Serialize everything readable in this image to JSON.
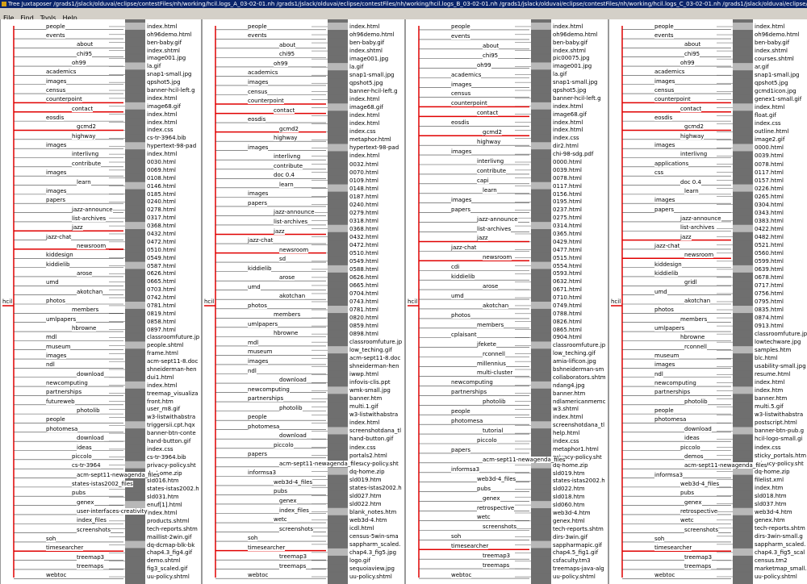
{
  "window": {
    "title": "Tree Juxtaposer /grads1/jslack/olduvai/eclipse/contestFiles/nh/working/hcil.logs_A_03-02-01.nh /grads1/jslack/olduvai/eclipse/contestFiles/nh/working/hcil.logs_B_03-02-01.nh /grads1/jslack/olduvai/eclipse/contestFiles/nh/working/hcil.logs_C_03-02-01.nh /grads1/jslack/olduvai/eclipse/contestFiles/nh/working/hcil.logs",
    "app_icon": "tree-juxtaposer-icon"
  },
  "menu": [
    "File",
    "Find",
    "Tools",
    "Help"
  ],
  "colors": {
    "highlight": "#e00000",
    "gray_dark": "#6f6f6f",
    "gray_light": "#b8b8b8"
  },
  "panes": [
    {
      "root": "hcil",
      "nodes": [
        "people",
        "events",
        "about",
        "chi95",
        "oh99",
        "academics",
        "images",
        "census",
        "counterpoint",
        "contact",
        "eosdis",
        "gcmd2",
        "highway",
        "images",
        "interlivng",
        "contribute",
        "images",
        "learn",
        "images",
        "papers",
        "jazz-announce",
        "list-archives",
        "jazz",
        "jazz-chat",
        "newsroom",
        "kiddesign",
        "kiddielib",
        "arose",
        "umd",
        "akotchan",
        "photos",
        "members",
        "umlpapers",
        "hbrowne",
        "mdl",
        "museum",
        "images",
        "ndl",
        "download",
        "newcomputing",
        "partnerships",
        "futureweb",
        "photolib",
        "people",
        "photomesa",
        "download",
        "ideas",
        "piccolo",
        "cs-tr-3964",
        "acm-sept11-newagenda_files",
        "states-istas2002_files",
        "pubs",
        "genex",
        "user-interfaces-creativity",
        "index_files",
        "screenshots",
        "soh",
        "timesearcher",
        "treemap3",
        "treemaps",
        "webtoc"
      ],
      "leaves": [
        "index.html",
        "oh96demo.html",
        "ben-baby.gif",
        "index.shtml",
        "image001.jpg",
        "la.gif",
        "snap1-small.jpg",
        "qpshot5.jpg",
        "banner-hcil-left.g",
        "index.html",
        "image68.gif",
        "index.html",
        "index.html",
        "index.css",
        "cs-tr-3964.bib",
        "hypertext-98-pad",
        "index.html",
        "0030.html",
        "0069.html",
        "0108.html",
        "0146.html",
        "0185.html",
        "0240.html",
        "0278.html",
        "0317.html",
        "0368.html",
        "0432.html",
        "0472.html",
        "0510.html",
        "0549.html",
        "0587.html",
        "0626.html",
        "0665.html",
        "0703.html",
        "0742.html",
        "0781.html",
        "0819.html",
        "0858.html",
        "0897.html",
        "classroomfuture.jp",
        "people.shtml",
        "frame.html",
        "acm-sept11-8.doc",
        "shneiderman-hen",
        "dui1.html",
        "index.html",
        "treemap_visualiza",
        "front.htm",
        "user_m8.gif",
        "w3-listwithabstra",
        "triggersii.cpt.hqx",
        "banner-btn-conte",
        "hand-button.gif",
        "index.css",
        "cs-tr-3964.bib",
        "privacy-policy.sht",
        "dq-home.zip",
        "sld016.htm",
        "states-istas2002.h",
        "sld031.htm",
        "enuf[1].html",
        "index.html",
        "products.shtml",
        "tech-reports.shtm",
        "maillist-2win.gif",
        "dq-dcmap-blk-bk",
        "chap4.3_fig4.gif",
        "demo.shtml",
        "fig3_scaled.gif",
        "uu-policy.shtml"
      ]
    },
    {
      "root": "hcil",
      "nodes": [
        "people",
        "events",
        "about",
        "chi95",
        "oh99",
        "academics",
        "images",
        "census",
        "counterpoint",
        "contact",
        "eosdis",
        "gcmd2",
        "highway",
        "images",
        "interlivng",
        "contribute",
        "doc 0.4",
        "learn",
        "images",
        "papers",
        "jazz-announce",
        "list-archives",
        "jazz",
        "jazz-chat",
        "newsroom",
        "sd",
        "kiddielib",
        "arose",
        "umd",
        "akotchan",
        "photos",
        "members",
        "umlpapers",
        "hbrowne",
        "mdl",
        "museum",
        "images",
        "ndl",
        "download",
        "newcomputing",
        "partnerships",
        "photolib",
        "people",
        "photomesa",
        "download",
        "piccolo",
        "papers",
        "acm-sept11-newagenda_files",
        "informsa3",
        "web3d-4_files",
        "pubs",
        "genex",
        "index_files",
        "wetc",
        "screenshots",
        "soh",
        "timesearcher",
        "treemap3",
        "treemaps",
        "webtoc"
      ],
      "leaves": [
        "index.html",
        "oh96demo.html",
        "ben-baby.gif",
        "index.shtml",
        "image001.jpg",
        "la.gif",
        "snap1-small.jpg",
        "qpshot5.jpg",
        "banner-hcil-left.g",
        "index.html",
        "image68.gif",
        "index.html",
        "index.html",
        "index.css",
        "metaphor.html",
        "hypertext-98-pad",
        "index.html",
        "0032.html",
        "0070.html",
        "0109.html",
        "0148.html",
        "0187.html",
        "0240.html",
        "0279.html",
        "0318.html",
        "0368.html",
        "0432.html",
        "0472.html",
        "0510.html",
        "0549.html",
        "0588.html",
        "0626.html",
        "0665.html",
        "0704.html",
        "0743.html",
        "0781.html",
        "0820.html",
        "0859.html",
        "0898.html",
        "classroomfuture.jp",
        "low_teching.gif",
        "acm-sept11-8.doc",
        "shneiderman-hen",
        "iwwp.html",
        "infovis-clis.ppt",
        "wmk-small.jpg",
        "banner.htm",
        "multi.1.gif",
        "w3-listwithabstra",
        "index.html",
        "screenshotdana_tl",
        "hand-button.gif",
        "index.css",
        "portals2.html",
        "privacy-policy.sht",
        "dq-home.zip",
        "sld019.htm",
        "states-istas2002.h",
        "sld027.htm",
        "sld022.htm",
        "blank_notes.htm",
        "web3d-4.htm",
        "icdl.html",
        "census-5win-sma",
        "sappharm_scaled.",
        "chap4.3_fig5.jpg",
        "logo.gif",
        "sequoiaview.jpg",
        "uu-policy.shtml"
      ]
    },
    {
      "root": "hcil",
      "nodes": [
        "people",
        "events",
        "about",
        "chi95",
        "oh99",
        "academics",
        "images",
        "census",
        "counterpoint",
        "contact",
        "eosdis",
        "gcmd2",
        "highway",
        "images",
        "interlivng",
        "contribute",
        "capi",
        "learn",
        "images",
        "papers",
        "jazz-announce",
        "list-archives",
        "jazz",
        "jazz-chat",
        "newsroom",
        "cdi",
        "kiddielib",
        "arose",
        "umd",
        "akotchan",
        "photos",
        "members",
        "cplaisant",
        "jfekete",
        "rconnell",
        "millennius",
        "multi-cluster",
        "newcomputing",
        "partnerships",
        "photolib",
        "people",
        "photomesa",
        "tutorial",
        "piccolo",
        "papers",
        "acm-sept11-newagenda_files",
        "informsa3",
        "web3d-4_files",
        "pubs",
        "genex",
        "retrospective",
        "wetc",
        "screenshots",
        "soh",
        "timesearcher",
        "treemap3",
        "treemaps",
        "webtoc"
      ],
      "leaves": [
        "index.html",
        "oh96demo.html",
        "ben-baby.gif",
        "index.shtml",
        "pic00075.jpg",
        "image001.jpg",
        "la.gif",
        "snap1-small.jpg",
        "qpshot5.jpg",
        "banner-hcil-left.g",
        "index.html",
        "image68.gif",
        "index.html",
        "index.html",
        "index.css",
        "dir2.html",
        "chi-98-sdg.pdf",
        "0000.html",
        "0039.html",
        "0078.html",
        "0117.html",
        "0156.html",
        "0195.html",
        "0237.html",
        "0275.html",
        "0314.html",
        "0365.html",
        "0429.html",
        "0477.html",
        "0515.html",
        "0554.html",
        "0593.html",
        "0632.html",
        "0671.html",
        "0710.html",
        "0749.html",
        "0788.html",
        "0826.html",
        "0865.html",
        "0904.html",
        "classroomfuture.jp",
        "low_teching.gif",
        "amia-lificon.jpg",
        "bshneiderman-sm",
        "collaborators.shtm",
        "ndang4.jpg",
        "banner.htm",
        "ndlamericanmemc",
        "w3.shtml",
        "index.html",
        "screenshotdana_tl",
        "help.html",
        "index.css",
        "metaphor1.html",
        "privacy-policy.sht",
        "dq-home.zip",
        "sld019.htm",
        "states-istas2002.h",
        "sld022.htm",
        "sld018.htm",
        "sld060.htm",
        "web3d-4.htm",
        "genex.html",
        "tech-reports.shtm",
        "dirs-3win.gif",
        "sappharmapic.gif",
        "chap4.5_fig1.gif",
        "csfaculty.tm3",
        "treemaps-java-alg",
        "uu-policy.shtml"
      ]
    },
    {
      "root": "hcil",
      "nodes": [
        "people",
        "events",
        "about",
        "chi95",
        "oh99",
        "academics",
        "images",
        "census",
        "counterpoint",
        "contact",
        "eosdis",
        "gcmd2",
        "highway",
        "images",
        "interlivng",
        "applications",
        "css",
        "doc 0.4",
        "learn",
        "images",
        "papers",
        "jazz-announce",
        "list-archives",
        "jazz",
        "jazz-chat",
        "newsroom",
        "kiddesign",
        "kiddielib",
        "gridl",
        "umd",
        "akotchan",
        "photos",
        "members",
        "umlpapers",
        "hbrowne",
        "rconnell",
        "museum",
        "images",
        "ndl",
        "newcomputing",
        "partnerships",
        "photolib",
        "people",
        "photomesa",
        "download",
        "ideas",
        "piccolo",
        "demos",
        "acm-sept11-newagenda_files",
        "informsa3",
        "web3d-4_files",
        "pubs",
        "genex",
        "retrospective",
        "wetc",
        "screenshots",
        "soh",
        "timesearcher",
        "treemap3",
        "treemaps",
        "webtoc"
      ],
      "leaves": [
        "index.html",
        "oh96demo.html",
        "ben-baby.gif",
        "index.shtml",
        "courses.shtml",
        "ar.gif",
        "snap1-small.jpg",
        "qpshot5.jpg",
        "gcmd1icon.jpg",
        "genex1-small.gif",
        "index.html",
        "float.gif",
        "index.css",
        "outline.html",
        "image2.gif",
        "0000.html",
        "0039.html",
        "0078.html",
        "0117.html",
        "0157.html",
        "0226.html",
        "0265.html",
        "0304.html",
        "0343.html",
        "0383.html",
        "0422.html",
        "0482.html",
        "0521.html",
        "0560.html",
        "0599.html",
        "0639.html",
        "0678.html",
        "0717.html",
        "0756.html",
        "0795.html",
        "0835.html",
        "0874.html",
        "0913.html",
        "classroomfuture.jp",
        "lowtechware.jpg",
        "samples.htm",
        "blc.html",
        "usability-small.jpg",
        "resume.html",
        "index.html",
        "index.htm",
        "banner.htm",
        "multi.5.gif",
        "w3-listwithabstra",
        "postscript.html",
        "banner-btn-pub.g",
        "hcil-logo-small.gi",
        "index.css",
        "sticky_portals.htm",
        "privacy-policy.sht",
        "dq-home.zip",
        "filelist.xml",
        "index.htm",
        "sld018.htm",
        "sld037.htm",
        "web3d-4.htm",
        "genex.htm",
        "tech-reports.shtm",
        "dirs-3win-small.g",
        "sappharm_scaled.",
        "chap4.3_fig5_scal",
        "census.tm2",
        "marketmap_small.",
        "uu-policy.shtml"
      ]
    }
  ]
}
